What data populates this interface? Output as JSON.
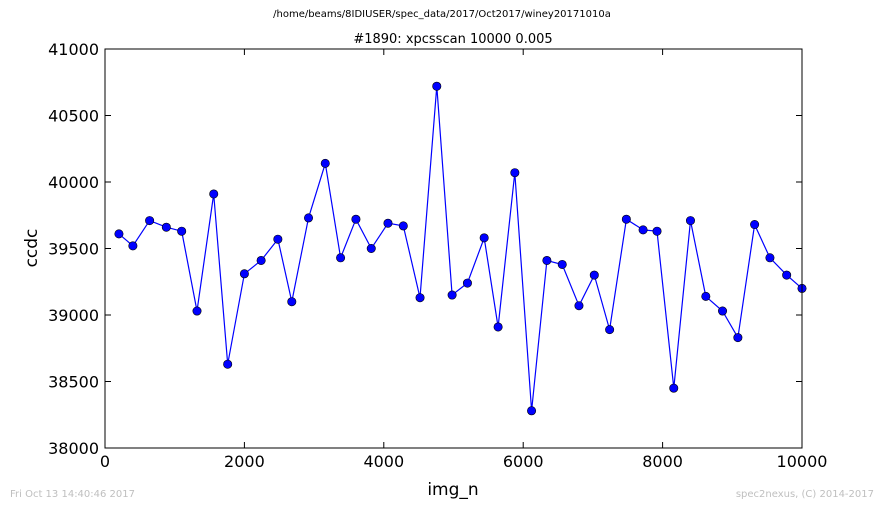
{
  "suptitle": "/home/beams/8IDIUSER/spec_data/2017/Oct2017/winey20171010a",
  "footer": {
    "timestamp": "Fri Oct 13 14:40:46 2017",
    "credit": "spec2nexus, (C) 2014-2017"
  },
  "chart_data": {
    "type": "line",
    "title": "#1890: xpcsscan 10000 0.005",
    "xlabel": "img_n",
    "ylabel": "ccdc",
    "xlim": [
      0,
      10000
    ],
    "ylim": [
      38000,
      41000
    ],
    "xticks": [
      0,
      2000,
      4000,
      6000,
      8000,
      10000
    ],
    "yticks": [
      38000,
      38500,
      39000,
      39500,
      40000,
      40500,
      41000
    ],
    "grid": false,
    "color": "#0000ff",
    "x": [
      200,
      400,
      640,
      880,
      1100,
      1320,
      1560,
      1760,
      2000,
      2240,
      2480,
      2680,
      2920,
      3160,
      3380,
      3600,
      3820,
      4060,
      4280,
      4520,
      4760,
      4980,
      5200,
      5440,
      5640,
      5880,
      6120,
      6340,
      6560,
      6800,
      7020,
      7240,
      7480,
      7720,
      7920,
      8160,
      8400,
      8620,
      8860,
      9080,
      9320,
      9540,
      9780,
      10000
    ],
    "y": [
      39610,
      39520,
      39710,
      39660,
      39630,
      39030,
      39910,
      38630,
      39310,
      39410,
      39570,
      39100,
      39730,
      40140,
      39430,
      39720,
      39500,
      39690,
      39670,
      39130,
      40720,
      39150,
      39240,
      39580,
      38910,
      40070,
      38280,
      39410,
      39380,
      39070,
      39300,
      38890,
      39720,
      39640,
      39630,
      38450,
      39710,
      39140,
      39030,
      38830,
      39680,
      39430,
      39300,
      39200
    ]
  }
}
